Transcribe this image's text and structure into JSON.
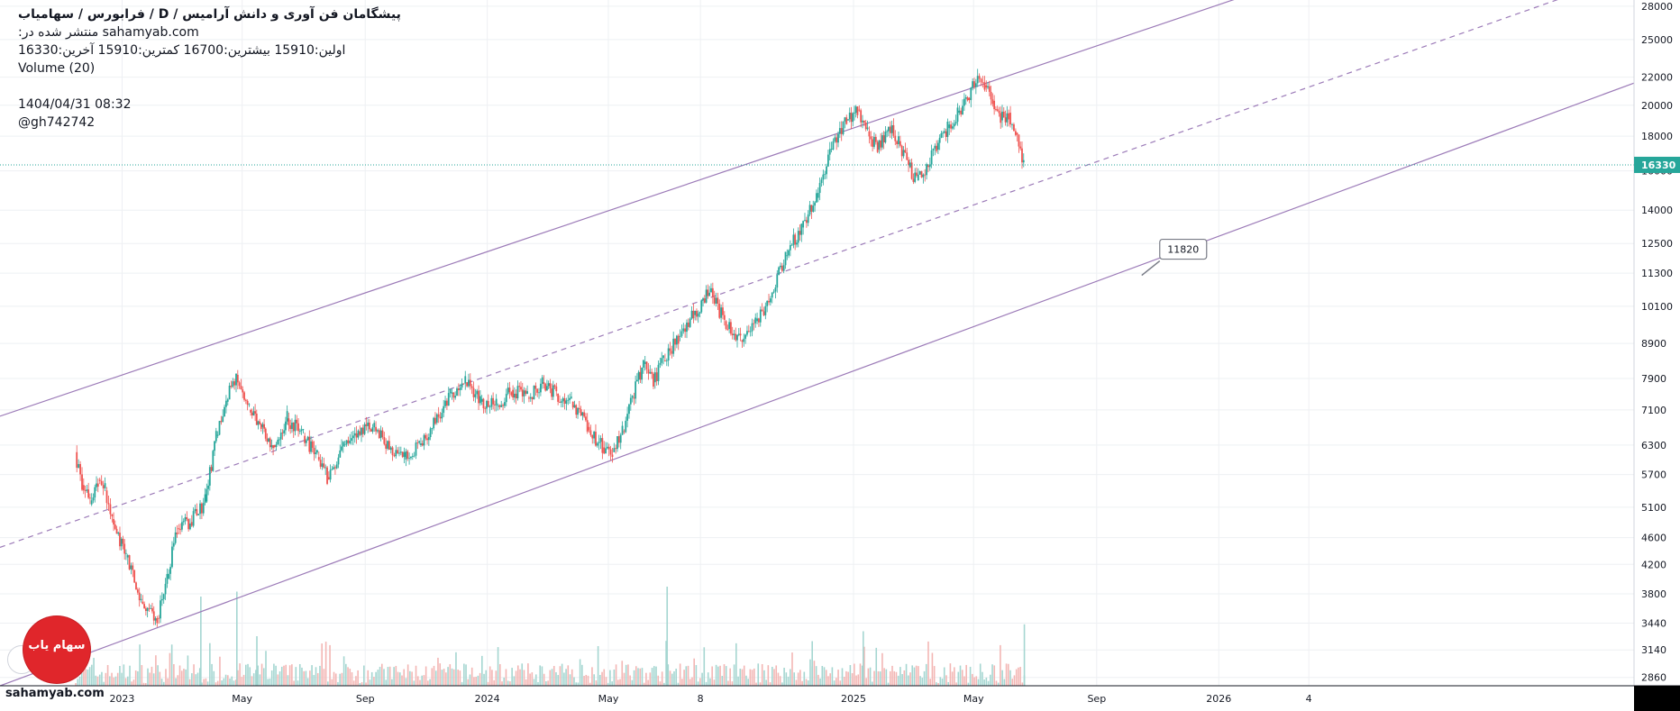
{
  "legend": {
    "title": "پیشگامان فن آوری و دانش آرامیس  /  D  /  فرابورس / سهامیاب",
    "published_prefix": "منتشر شده در:",
    "published_site": "sahamyab.com",
    "ohlc_text": "اولین:15910  بیشترین:16700  کمترین:15910  آخرین:16330",
    "volume_label": "Volume (20)",
    "timestamp": "1404/04/31 08:32",
    "author": "@gh742742"
  },
  "footer": {
    "site": "sahamyab.com"
  },
  "logo": {
    "text": "سهام یاب"
  },
  "colors": {
    "up": "#26a69a",
    "down": "#ef5350",
    "channel": "#9c7bb8",
    "price_line": "#26a69a",
    "grid": "#eef0f3",
    "axis_text": "#131722"
  },
  "chart_data": {
    "type": "candlestick",
    "symbol_interval": "D",
    "y_scale": "log",
    "ylim": [
      2780,
      28600
    ],
    "y_ticks": [
      2860,
      3140,
      3440,
      3800,
      4200,
      4600,
      5100,
      5700,
      6300,
      7100,
      7900,
      8900,
      10100,
      11300,
      12500,
      14000,
      16000,
      18000,
      20000,
      22000,
      25000,
      28000
    ],
    "x_range": [
      "2022-09-01",
      "2027-02-20"
    ],
    "x_ticks": [
      {
        "date": "2023-01-01",
        "label": "2023"
      },
      {
        "date": "2023-05-01",
        "label": "May"
      },
      {
        "date": "2023-09-01",
        "label": "Sep"
      },
      {
        "date": "2024-01-01",
        "label": "2024"
      },
      {
        "date": "2024-05-01",
        "label": "May"
      },
      {
        "date": "2024-08-01",
        "label": "8"
      },
      {
        "date": "2025-01-01",
        "label": "2025"
      },
      {
        "date": "2025-05-01",
        "label": "May"
      },
      {
        "date": "2025-09-01",
        "label": "Sep"
      },
      {
        "date": "2026-01-01",
        "label": "2026"
      },
      {
        "date": "2026-04-01",
        "label": "4"
      }
    ],
    "last_price": 16330,
    "channel": {
      "upper": [
        {
          "date": "2022-09-01",
          "price": 6950
        },
        {
          "date": "2025-06-20",
          "price": 22500
        }
      ],
      "middle": [
        {
          "date": "2022-09-01",
          "price": 4450
        },
        {
          "date": "2025-07-05",
          "price": 15400
        }
      ],
      "lower": [
        {
          "date": "2022-09-01",
          "price": 2780
        },
        {
          "date": "2025-05-20",
          "price": 9650
        }
      ]
    },
    "callout": {
      "label": "11820",
      "date": "2025-10-25",
      "price": 12000
    },
    "price_path": [
      [
        "2022-11-15",
        6150
      ],
      [
        "2022-11-22",
        5500
      ],
      [
        "2022-11-30",
        5150
      ],
      [
        "2022-12-08",
        5600
      ],
      [
        "2022-12-15",
        5400
      ],
      [
        "2022-12-22",
        4900
      ],
      [
        "2023-01-05",
        4300
      ],
      [
        "2023-01-20",
        3700
      ],
      [
        "2023-02-05",
        3500
      ],
      [
        "2023-02-15",
        4000
      ],
      [
        "2023-02-25",
        4750
      ],
      [
        "2023-03-10",
        4850
      ],
      [
        "2023-03-25",
        5200
      ],
      [
        "2023-04-05",
        6500
      ],
      [
        "2023-04-15",
        7300
      ],
      [
        "2023-04-25",
        8000
      ],
      [
        "2023-05-08",
        7100
      ],
      [
        "2023-05-20",
        6700
      ],
      [
        "2023-06-01",
        6300
      ],
      [
        "2023-06-15",
        6900
      ],
      [
        "2023-07-01",
        6500
      ],
      [
        "2023-07-15",
        6050
      ],
      [
        "2023-07-25",
        5650
      ],
      [
        "2023-08-10",
        6300
      ],
      [
        "2023-08-25",
        6600
      ],
      [
        "2023-09-10",
        6700
      ],
      [
        "2023-09-25",
        6200
      ],
      [
        "2023-10-10",
        6000
      ],
      [
        "2023-10-25",
        6300
      ],
      [
        "2023-11-10",
        6800
      ],
      [
        "2023-11-25",
        7500
      ],
      [
        "2023-12-10",
        7800
      ],
      [
        "2023-12-25",
        7300
      ],
      [
        "2024-01-10",
        7200
      ],
      [
        "2024-01-25",
        7600
      ],
      [
        "2024-02-10",
        7400
      ],
      [
        "2024-02-25",
        7800
      ],
      [
        "2024-03-10",
        7500
      ],
      [
        "2024-03-25",
        7300
      ],
      [
        "2024-04-10",
        6700
      ],
      [
        "2024-04-25",
        6250
      ],
      [
        "2024-05-05",
        6150
      ],
      [
        "2024-05-15",
        6600
      ],
      [
        "2024-05-25",
        7400
      ],
      [
        "2024-06-05",
        8300
      ],
      [
        "2024-06-15",
        7800
      ],
      [
        "2024-06-25",
        8400
      ],
      [
        "2024-07-10",
        9100
      ],
      [
        "2024-07-25",
        9800
      ],
      [
        "2024-08-10",
        10600
      ],
      [
        "2024-08-25",
        9600
      ],
      [
        "2024-09-10",
        9000
      ],
      [
        "2024-09-25",
        9600
      ],
      [
        "2024-10-10",
        10400
      ],
      [
        "2024-10-25",
        12000
      ],
      [
        "2024-11-10",
        13200
      ],
      [
        "2024-11-25",
        14600
      ],
      [
        "2024-12-10",
        17200
      ],
      [
        "2024-12-25",
        19000
      ],
      [
        "2025-01-05",
        19700
      ],
      [
        "2025-01-15",
        18300
      ],
      [
        "2025-01-25",
        17200
      ],
      [
        "2025-02-05",
        18600
      ],
      [
        "2025-02-15",
        17700
      ],
      [
        "2025-02-25",
        16200
      ],
      [
        "2025-03-05",
        15500
      ],
      [
        "2025-03-15",
        16300
      ],
      [
        "2025-03-25",
        17200
      ],
      [
        "2025-04-05",
        18500
      ],
      [
        "2025-04-15",
        19500
      ],
      [
        "2025-04-25",
        20500
      ],
      [
        "2025-05-05",
        22100
      ],
      [
        "2025-05-12",
        21400
      ],
      [
        "2025-05-20",
        20300
      ],
      [
        "2025-05-28",
        19000
      ],
      [
        "2025-06-05",
        19500
      ],
      [
        "2025-06-12",
        18200
      ],
      [
        "2025-06-20",
        16330
      ]
    ],
    "volume_spikes": [
      [
        "2023-03-20",
        0.9
      ],
      [
        "2023-04-25",
        0.95
      ],
      [
        "2024-06-28",
        1.0
      ],
      [
        "2025-06-20",
        0.62
      ],
      [
        "2023-05-15",
        0.5
      ],
      [
        "2024-04-20",
        0.4
      ],
      [
        "2025-01-10",
        0.55
      ],
      [
        "2024-11-20",
        0.45
      ]
    ]
  }
}
